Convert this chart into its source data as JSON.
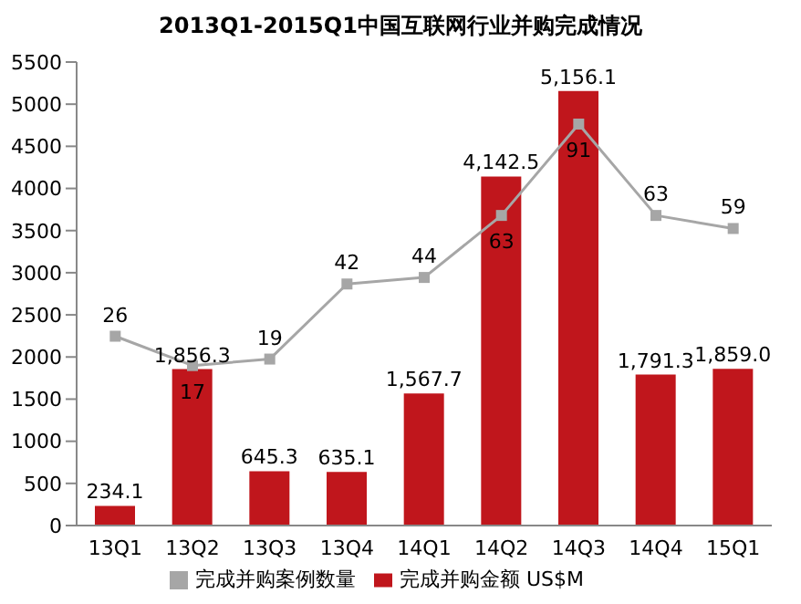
{
  "chart_data": {
    "type": "bar",
    "title": "2013Q1-2015Q1中国互联网行业并购完成情况",
    "categories": [
      "13Q1",
      "13Q2",
      "13Q3",
      "13Q4",
      "14Q1",
      "14Q2",
      "14Q3",
      "14Q4",
      "15Q1"
    ],
    "series": [
      {
        "name": "完成并购金额 US$M",
        "color": "#c0161c",
        "values": [
          234.1,
          1856.3,
          645.3,
          635.1,
          1567.7,
          4142.5,
          5156.1,
          1791.3,
          1859.0
        ],
        "value_labels": [
          "234.1",
          "1,856.3",
          "645.3",
          "635.1",
          "1,567.7",
          "4,142.5",
          "5,156.1",
          "1,791.3",
          "1,859.0"
        ]
      },
      {
        "name": "完成并购案例数量",
        "type": "line",
        "axis": "y2",
        "color": "#a6a6a6",
        "marker": "square",
        "values": [
          26,
          17,
          19,
          42,
          44,
          63,
          91,
          63,
          59
        ],
        "value_labels": [
          "26",
          "17",
          "19",
          "42",
          "44",
          "63",
          "91",
          "63",
          "59"
        ]
      }
    ],
    "ylim": [
      0,
      5500
    ],
    "yticks": [
      0,
      500,
      1000,
      1500,
      2000,
      2500,
      3000,
      3500,
      4000,
      4500,
      5000,
      5500
    ],
    "y2lim": [
      -32,
      110
    ],
    "grid": false,
    "legend": "bottom"
  }
}
